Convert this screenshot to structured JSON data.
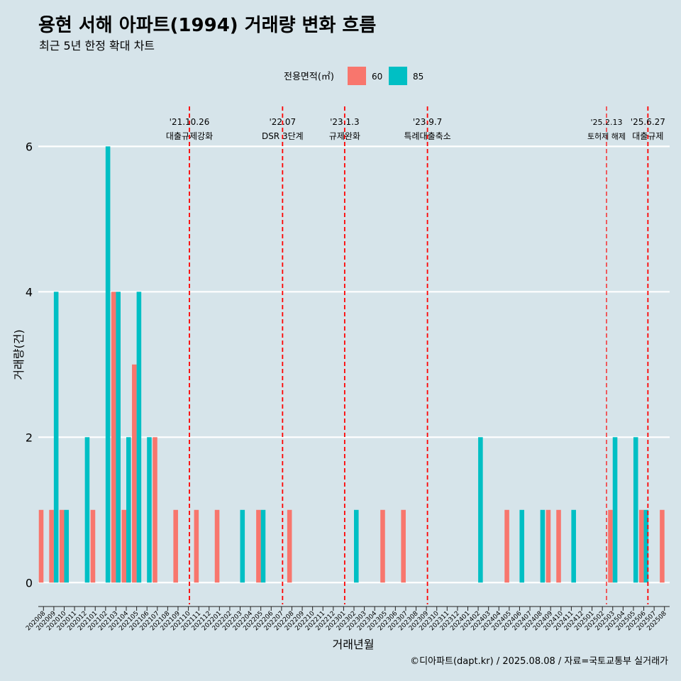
{
  "chart_data": {
    "type": "bar",
    "title": "용현 서해 아파트(1994) 거래량 변화 흐름",
    "subtitle": "최근 5년 한정 확대 차트",
    "xlabel": "거래년월",
    "ylabel": "거래량(건)",
    "ylim": [
      -0.3,
      6.55
    ],
    "yticks": [
      0,
      2,
      4,
      6
    ],
    "grid": true,
    "legend": {
      "title": "전용면적(㎡)",
      "placement": "top-center",
      "entries": [
        {
          "name": "60",
          "color": "#F8766D"
        },
        {
          "name": "85",
          "color": "#00BFC4"
        }
      ]
    },
    "categories": [
      "202008",
      "202009",
      "202010",
      "202011",
      "202012",
      "202101",
      "202102",
      "202103",
      "202104",
      "202105",
      "202106",
      "202107",
      "202108",
      "202109",
      "202110",
      "202111",
      "202112",
      "202201",
      "202202",
      "202203",
      "202204",
      "202205",
      "202206",
      "202207",
      "202208",
      "202209",
      "202210",
      "202211",
      "202212",
      "202301",
      "202302",
      "202303",
      "202304",
      "202305",
      "202306",
      "202307",
      "202308",
      "202309",
      "202310",
      "202311",
      "202312",
      "202401",
      "202402",
      "202403",
      "202404",
      "202405",
      "202406",
      "202407",
      "202408",
      "202409",
      "202410",
      "202411",
      "202412",
      "202501",
      "202502",
      "202503",
      "202504",
      "202505",
      "202506",
      "202507",
      "202508"
    ],
    "series": [
      {
        "name": "60",
        "color": "#F8766D",
        "values": [
          1,
          1,
          1,
          0,
          0,
          1,
          0,
          4,
          1,
          3,
          0,
          2,
          0,
          1,
          0,
          1,
          0,
          1,
          0,
          0,
          0,
          1,
          0,
          0,
          1,
          0,
          0,
          0,
          0,
          0,
          0,
          0,
          0,
          1,
          0,
          1,
          0,
          0,
          0,
          0,
          0,
          0,
          0,
          0,
          0,
          1,
          0,
          0,
          0,
          1,
          1,
          0,
          0,
          0,
          0,
          1,
          0,
          0,
          1,
          0,
          1
        ]
      },
      {
        "name": "85",
        "color": "#00BFC4",
        "values": [
          0,
          4,
          1,
          0,
          2,
          0,
          6,
          4,
          2,
          4,
          2,
          0,
          0,
          0,
          0,
          0,
          0,
          0,
          0,
          1,
          0,
          1,
          0,
          0,
          0,
          0,
          0,
          0,
          0,
          0,
          1,
          0,
          0,
          0,
          0,
          0,
          0,
          0,
          0,
          0,
          0,
          0,
          2,
          0,
          0,
          0,
          1,
          0,
          1,
          0,
          0,
          1,
          0,
          0,
          0,
          2,
          0,
          2,
          1,
          0,
          0
        ]
      }
    ],
    "events": [
      {
        "date": "'21.10.26",
        "label": "대출규제강화",
        "position": 14.6,
        "small": false
      },
      {
        "date": "'22.07",
        "label": "DSR 3단계",
        "position": 23.6,
        "small": false
      },
      {
        "date": "'23.1.3",
        "label": "규제완화",
        "position": 29.6,
        "small": false
      },
      {
        "date": "'23.9.7",
        "label": "특례대출축소",
        "position": 37.6,
        "small": false
      },
      {
        "date": "'25.2.13",
        "label": "토허제 해제",
        "position": 54.9,
        "small": true
      },
      {
        "date": "'25.6.27",
        "label": "대출규제",
        "position": 58.9,
        "small": false
      }
    ],
    "caption": "©디아파트(dapt.kr) / 2025.08.08 / 자료=국토교통부 실거래가"
  }
}
